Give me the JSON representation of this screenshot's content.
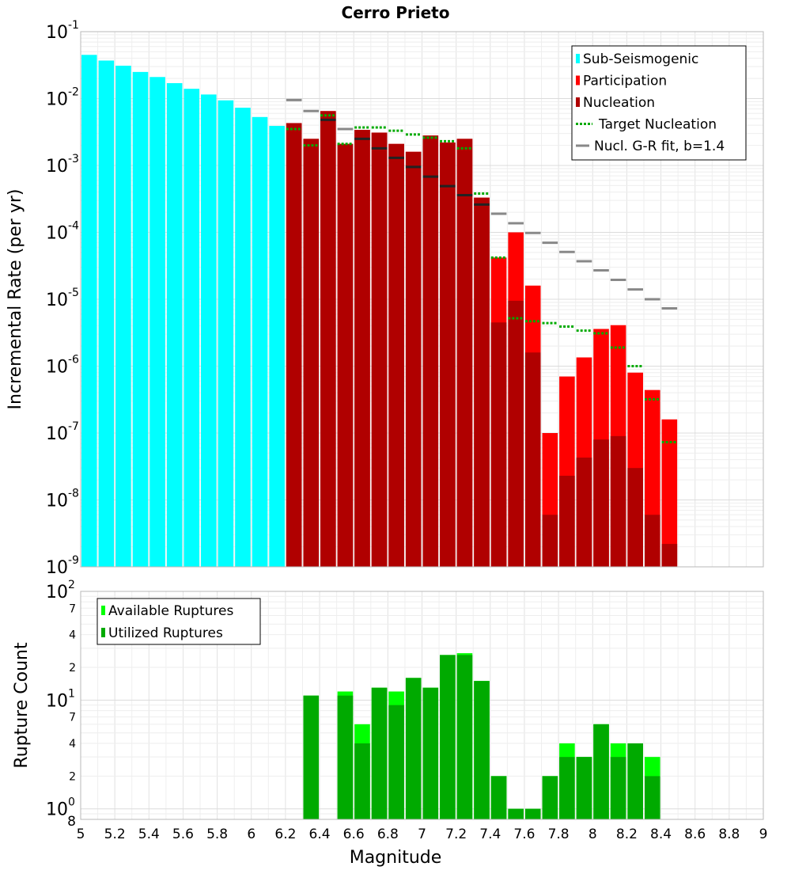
{
  "chart_data": [
    {
      "type": "bar",
      "title": "Cerro Prieto",
      "xlabel": "Magnitude",
      "ylabel": "Incremental Rate (per yr)",
      "yscale": "log",
      "xlim": [
        5,
        9
      ],
      "ylim": [
        1e-09,
        0.1
      ],
      "bin_width": 0.1,
      "y_ticks": [
        {
          "base": "10",
          "exp": "-9"
        },
        {
          "base": "10",
          "exp": "-8"
        },
        {
          "base": "10",
          "exp": "-7"
        },
        {
          "base": "10",
          "exp": "-6"
        },
        {
          "base": "10",
          "exp": "-5"
        },
        {
          "base": "10",
          "exp": "-4"
        },
        {
          "base": "10",
          "exp": "-3"
        },
        {
          "base": "10",
          "exp": "-2"
        },
        {
          "base": "10",
          "exp": "-1"
        }
      ],
      "legend": {
        "position": "top-right",
        "entries": [
          "Sub-Seismogenic",
          "Participation",
          "Nucleation",
          "Target Nucleation",
          "Nucl. G-R fit, b=1.4"
        ]
      },
      "colors": {
        "sub_seismogenic": "#00ffff",
        "participation": "#ff0000",
        "nucleation": "#b00000",
        "target_nucleation": "#00aa00",
        "gr_fit": "#888888",
        "gr_fit_short": "#222222"
      },
      "series": [
        {
          "name": "Sub-Seismogenic",
          "x": [
            5.0,
            5.1,
            5.2,
            5.3,
            5.4,
            5.5,
            5.6,
            5.7,
            5.8,
            5.9,
            6.0,
            6.1
          ],
          "values": [
            0.045,
            0.037,
            0.031,
            0.025,
            0.021,
            0.017,
            0.014,
            0.0115,
            0.0094,
            0.0073,
            0.0053,
            0.0039
          ]
        },
        {
          "name": "Participation",
          "x": [
            6.2,
            6.3,
            6.4,
            6.5,
            6.6,
            6.7,
            6.8,
            6.9,
            7.0,
            7.1,
            7.2,
            7.3,
            7.4,
            7.5,
            7.6,
            7.7,
            7.8,
            7.9,
            8.0,
            8.1,
            8.2,
            8.3,
            8.4
          ],
          "values": [
            0.0043,
            0.0025,
            0.0065,
            0.0021,
            0.0034,
            0.0031,
            0.0021,
            0.0016,
            0.0028,
            0.0022,
            0.0025,
            0.00033,
            4.2e-05,
            0.0001,
            1.6e-05,
            1e-07,
            7e-07,
            1.35e-06,
            3.6e-06,
            4.1e-06,
            8e-07,
            4.4e-07,
            1.6e-07
          ]
        },
        {
          "name": "Nucleation",
          "x": [
            6.2,
            6.3,
            6.4,
            6.5,
            6.6,
            6.7,
            6.8,
            6.9,
            7.0,
            7.1,
            7.2,
            7.3,
            7.4,
            7.5,
            7.6,
            7.7,
            7.8,
            7.9,
            8.0,
            8.1,
            8.2,
            8.3,
            8.4
          ],
          "values": [
            0.0043,
            0.0025,
            0.0065,
            0.0021,
            0.0034,
            0.0031,
            0.0021,
            0.0016,
            0.0028,
            0.0022,
            0.0025,
            0.00033,
            4.5e-06,
            9.5e-06,
            1.6e-06,
            6e-09,
            2.3e-08,
            4.3e-08,
            8e-08,
            9e-08,
            3e-08,
            6e-09,
            2.2e-09
          ]
        },
        {
          "name": "Target Nucleation",
          "x": [
            6.2,
            6.3,
            6.4,
            6.5,
            6.6,
            6.7,
            6.8,
            6.9,
            7.0,
            7.1,
            7.2,
            7.3,
            7.4,
            7.5,
            7.6,
            7.7,
            7.8,
            7.9,
            8.0,
            8.1,
            8.2,
            8.3,
            8.4
          ],
          "values": [
            0.0035,
            0.002,
            0.0056,
            0.0021,
            0.0037,
            0.0037,
            0.0033,
            0.0029,
            0.0026,
            0.0023,
            0.0018,
            0.00038,
            4.2e-05,
            5.2e-06,
            4.7e-06,
            4.4e-06,
            3.9e-06,
            3.4e-06,
            3.1e-06,
            1.9e-06,
            1e-06,
            3.2e-07,
            7.3e-08
          ]
        },
        {
          "name": "Nucl. G-R fit, b=1.4",
          "x": [
            6.2,
            6.3,
            6.4,
            6.5,
            6.6,
            6.7,
            6.8,
            6.9,
            7.0,
            7.1,
            7.2,
            7.3,
            7.4,
            7.5,
            7.6,
            7.7,
            7.8,
            7.9,
            8.0,
            8.1,
            8.2,
            8.3,
            8.4
          ],
          "values": [
            0.0095,
            0.0065,
            0.0048,
            0.0035,
            0.0025,
            0.0018,
            0.0013,
            0.00095,
            0.00068,
            0.00049,
            0.00036,
            0.00026,
            0.00019,
            0.000137,
            9.8e-05,
            7e-05,
            5.1e-05,
            3.7e-05,
            2.7e-05,
            1.95e-05,
            1.4e-05,
            1e-05,
            7.3e-06
          ]
        }
      ]
    },
    {
      "type": "bar",
      "xlabel": "Magnitude",
      "ylabel": "Rupture Count",
      "yscale": "log",
      "xlim": [
        5,
        9
      ],
      "ylim": [
        0.8,
        100
      ],
      "bin_width": 0.1,
      "x_ticks": [
        "5",
        "5.2",
        "5.4",
        "5.6",
        "5.8",
        "6",
        "6.2",
        "6.4",
        "6.6",
        "6.8",
        "7",
        "7.2",
        "7.4",
        "7.6",
        "7.8",
        "8",
        "8.2",
        "8.4",
        "8.6",
        "8.8",
        "9"
      ],
      "y_ticks": [
        {
          "base": "10",
          "exp": "0"
        },
        {
          "base": "10",
          "exp": "1"
        },
        {
          "base": "10",
          "exp": "2"
        }
      ],
      "y_bottom_label": "8",
      "y_minor_ticks": [
        {
          "label": "2",
          "value": 2
        },
        {
          "label": "4",
          "value": 4
        },
        {
          "label": "7",
          "value": 7
        },
        {
          "label": "2",
          "value": 20
        },
        {
          "label": "4",
          "value": 40
        },
        {
          "label": "7",
          "value": 70
        }
      ],
      "legend": {
        "position": "top-left",
        "entries": [
          "Available Ruptures",
          "Utilized Ruptures"
        ]
      },
      "colors": {
        "available": "#00ff00",
        "utilized": "#00aa00"
      },
      "series": [
        {
          "name": "Available Ruptures",
          "x": [
            6.3,
            6.5,
            6.6,
            6.7,
            6.8,
            6.9,
            7.0,
            7.1,
            7.2,
            7.3,
            7.4,
            7.5,
            7.6,
            7.7,
            7.8,
            7.9,
            8.0,
            8.1,
            8.2,
            8.3
          ],
          "values": [
            11,
            12,
            6,
            13,
            12,
            16,
            13,
            26,
            27,
            15,
            2,
            1,
            1,
            2,
            4,
            3,
            6,
            4,
            4,
            3
          ]
        },
        {
          "name": "Utilized Ruptures",
          "x": [
            6.3,
            6.5,
            6.6,
            6.7,
            6.8,
            6.9,
            7.0,
            7.1,
            7.2,
            7.3,
            7.4,
            7.5,
            7.6,
            7.7,
            7.8,
            7.9,
            8.0,
            8.1,
            8.2,
            8.3
          ],
          "values": [
            11,
            11,
            4,
            13,
            9,
            16,
            13,
            26,
            26,
            15,
            2,
            1,
            1,
            2,
            3,
            3,
            6,
            3,
            4,
            2
          ]
        }
      ]
    }
  ]
}
